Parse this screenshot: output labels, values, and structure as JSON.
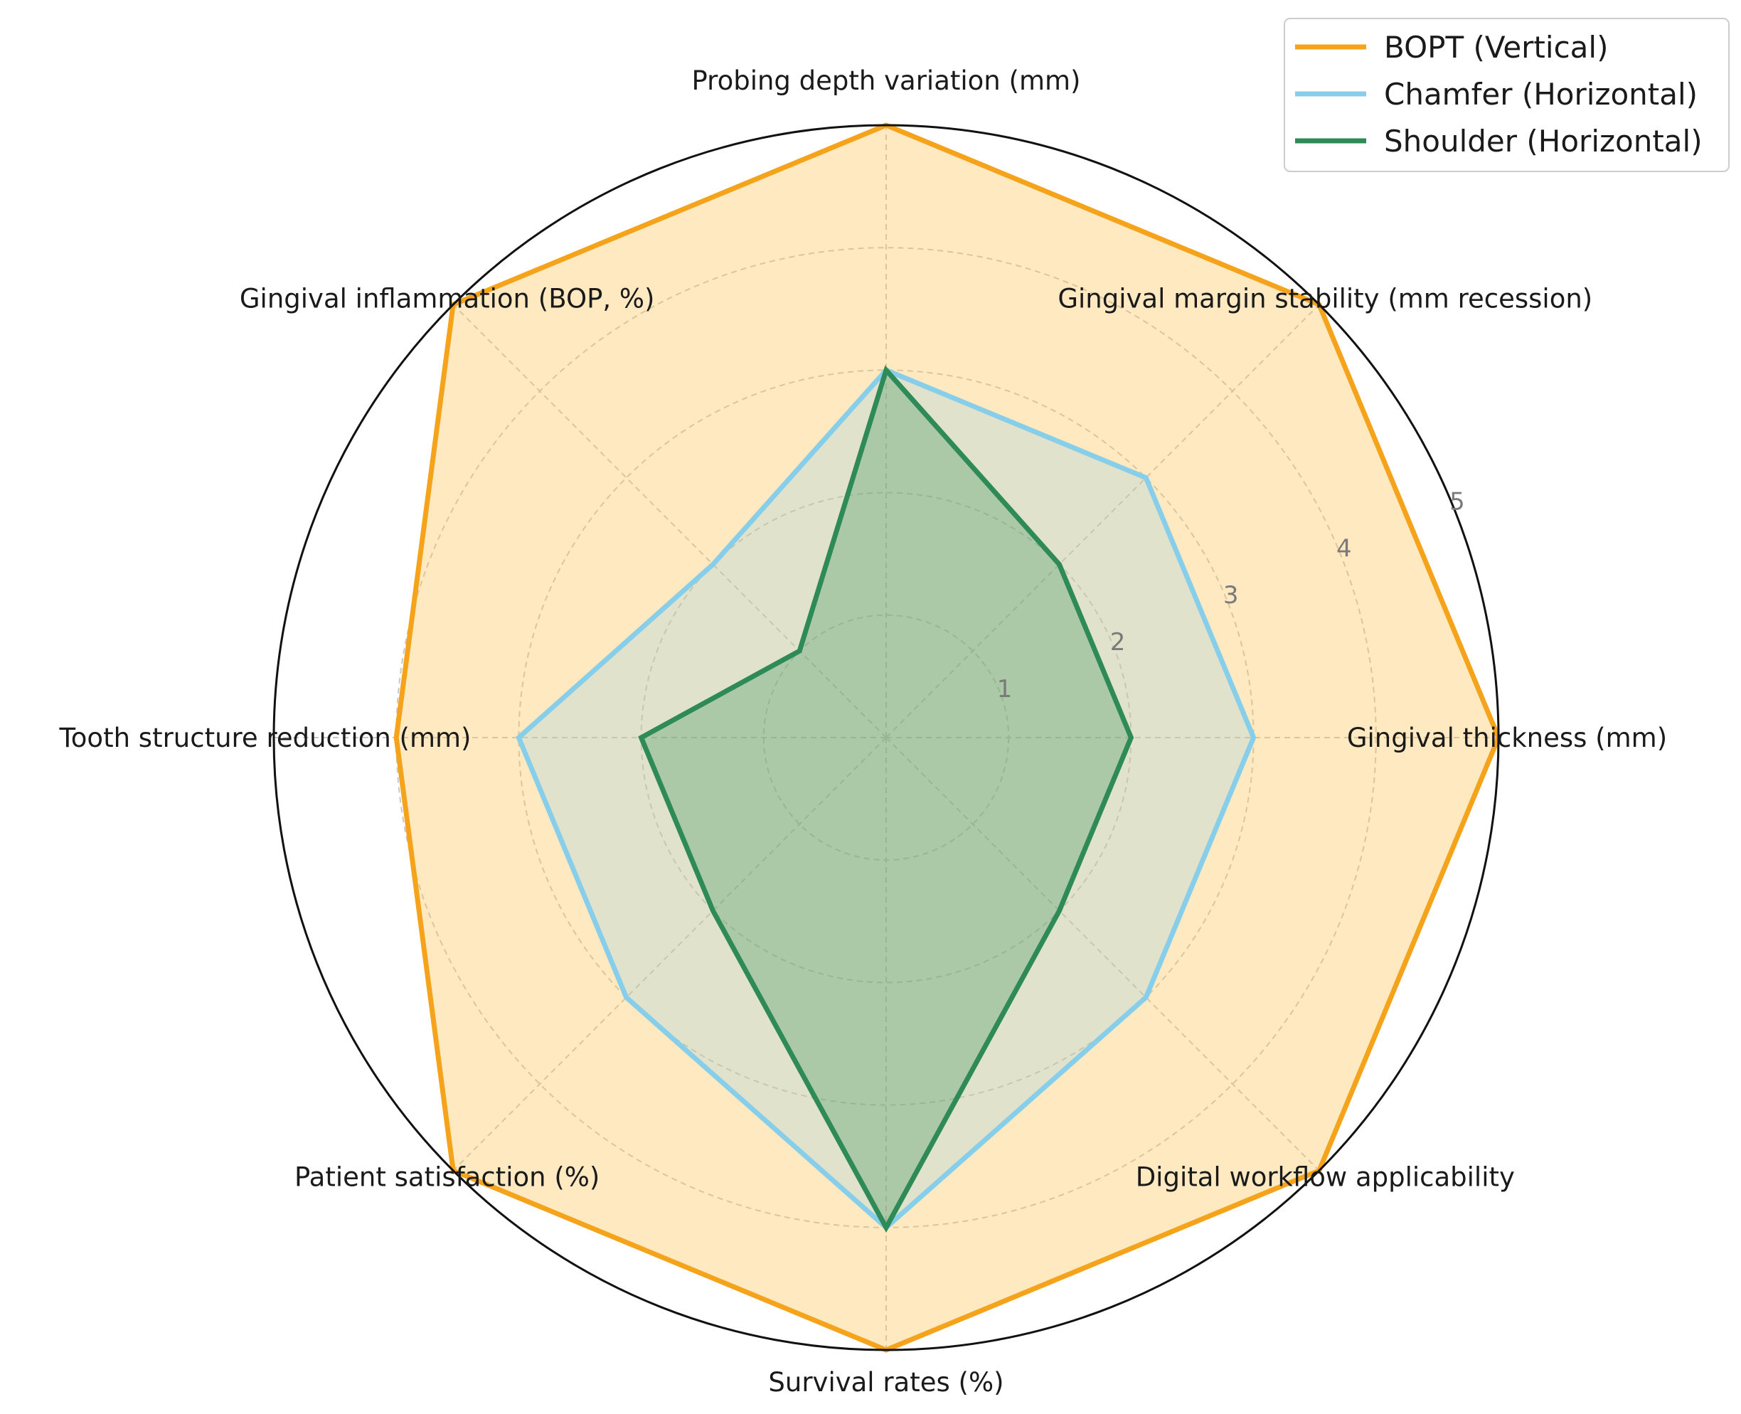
{
  "chart_data": {
    "type": "radar",
    "title": "",
    "axes": [
      "Gingival thickness (mm)",
      "Gingival margin stability (mm recession)",
      "Probing depth variation (mm)",
      "Gingival inflammation (BOP, %)",
      "Tooth structure reduction (mm)",
      "Patient satisfaction (%)",
      "Survival rates (%)",
      "Digital workflow applicability"
    ],
    "rlim": [
      0,
      5
    ],
    "rticks": [
      1,
      2,
      3,
      4,
      5
    ],
    "rtick_labels": [
      "1",
      "2",
      "3",
      "4",
      "5"
    ],
    "grid": true,
    "legend_position": "top-right",
    "series": [
      {
        "name": "BOPT (Vertical)",
        "color": "#F5A31B",
        "fill_color": "#FFC04D",
        "fill_opacity": 0.35,
        "values": [
          5,
          5,
          5,
          5,
          4,
          5,
          5,
          5
        ]
      },
      {
        "name": "Chamfer (Horizontal)",
        "color": "#87CEEB",
        "fill_color": "#87CEEB",
        "fill_opacity": 0.25,
        "values": [
          3,
          3,
          3,
          2,
          3,
          3,
          4,
          3
        ]
      },
      {
        "name": "Shoulder (Horizontal)",
        "color": "#2E8B57",
        "fill_color": "#2E8B57",
        "fill_opacity": 0.3,
        "values": [
          2,
          2,
          3,
          1,
          2,
          2,
          4,
          2
        ]
      }
    ]
  }
}
